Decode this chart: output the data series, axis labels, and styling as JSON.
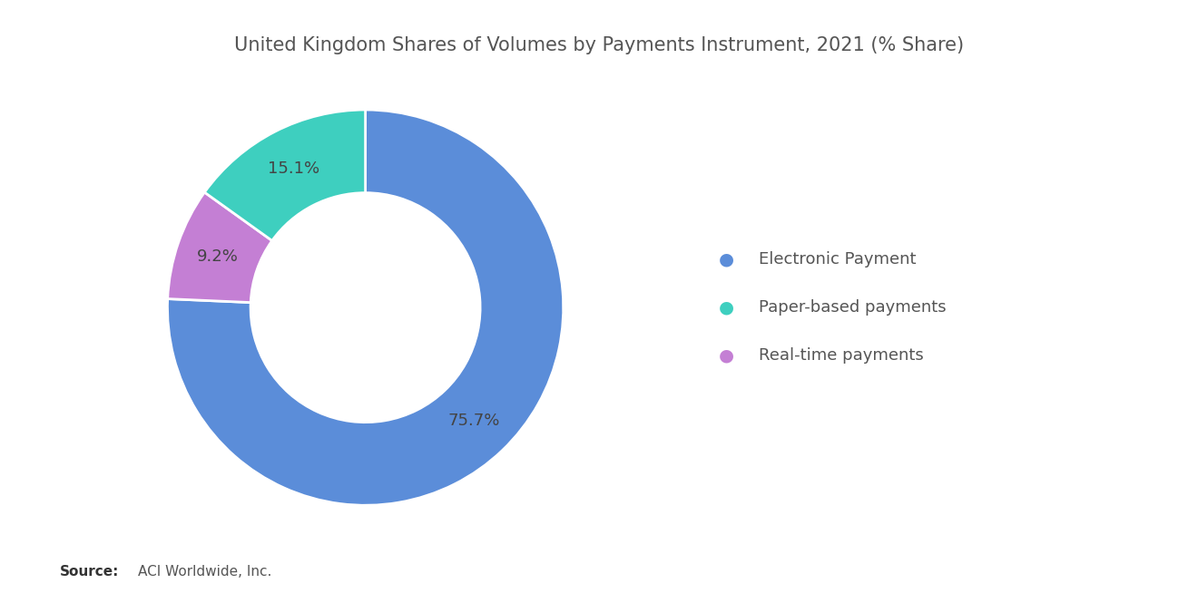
{
  "title": "United Kingdom Shares of Volumes by Payments Instrument, 2021 (% Share)",
  "labels": [
    "Electronic Payment",
    "Paper-based payments",
    "Real-time payments"
  ],
  "values": [
    75.7,
    15.1,
    9.2
  ],
  "colors": [
    "#5B8DD9",
    "#3ECFBF",
    "#C47FD4"
  ],
  "pct_labels": [
    "75.7%",
    "15.1%",
    "9.2%"
  ],
  "source_bold": "Source:",
  "source_text": "  ACI Worldwide, Inc.",
  "background_color": "#ffffff",
  "title_color": "#555555",
  "label_color": "#444444",
  "title_fontsize": 15,
  "pct_fontsize": 13,
  "legend_fontsize": 13
}
